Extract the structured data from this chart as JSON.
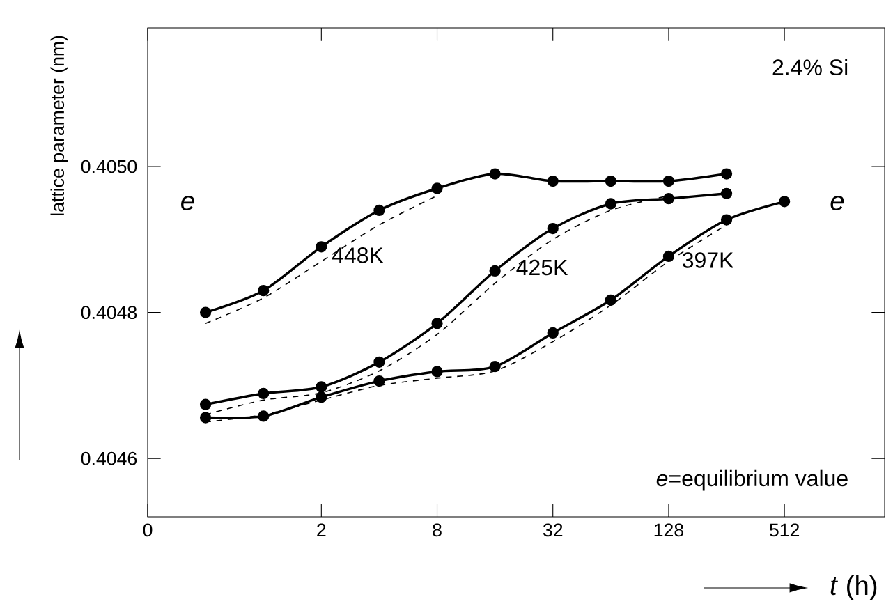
{
  "chart_data": {
    "type": "line",
    "xlabel": "*t* (h)",
    "ylabel": "lattice parameter (nm)",
    "log": "x",
    "grid": false,
    "xlim": [
      0.25,
      1700
    ],
    "ylim": [
      0.40452,
      0.40519
    ],
    "xticks": [
      {
        "value": 0.25,
        "label": "0"
      },
      2,
      8,
      32,
      128,
      512
    ],
    "yticks": [
      {
        "value": 0.4046,
        "label": "0.4046"
      },
      {
        "value": 0.4048,
        "label": "0.4048"
      },
      {
        "value": 0.405,
        "label": "0.4050"
      }
    ],
    "ref_lines": [
      {
        "axis": "y",
        "value": 0.40495,
        "label": "e"
      },
      {
        "axis": "y",
        "value": 0.40495,
        "label": "e"
      }
    ],
    "annotations": [
      "2.4% Si",
      "*e*=equilibrium value",
      "448K",
      "425K",
      "397K"
    ],
    "series": [
      {
        "color": "#000000",
        "marker": "circle",
        "line_style": "solid",
        "x": [
          0.5,
          1,
          2,
          4,
          8,
          16,
          32,
          64,
          128,
          256
        ],
        "values": [
          0.4048,
          0.40483,
          0.40489,
          0.40494,
          0.40497,
          0.40499,
          0.40498,
          0.40498,
          0.40498,
          0.40499
        ]
      },
      {
        "color": "#000000",
        "marker": "circle",
        "line_style": "solid",
        "x": [
          0.5,
          1,
          2,
          4,
          8,
          16,
          32,
          64,
          128,
          256
        ],
        "values": [
          0.404674,
          0.404689,
          0.404698,
          0.404732,
          0.404785,
          0.404857,
          0.404915,
          0.404949,
          0.404956,
          0.404963
        ]
      },
      {
        "color": "#000000",
        "marker": "circle",
        "line_style": "solid",
        "x": [
          0.5,
          1,
          2,
          4,
          8,
          16,
          32,
          64,
          128,
          256,
          512
        ],
        "values": [
          0.404656,
          0.404658,
          0.404684,
          0.404706,
          0.404719,
          0.404726,
          0.404772,
          0.404817,
          0.404877,
          0.404927,
          0.404952
        ]
      },
      {
        "color": "#000000",
        "marker": "none",
        "line_style": "dashed",
        "x": [
          0.5,
          1,
          2,
          4,
          8
        ],
        "values": [
          0.404785,
          0.40482,
          0.40487,
          0.40492,
          0.40496
        ]
      },
      {
        "color": "#000000",
        "marker": "none",
        "line_style": "dashed",
        "x": [
          0.5,
          1,
          2,
          4,
          8,
          16,
          32,
          64,
          128
        ],
        "values": [
          0.40466,
          0.40468,
          0.40469,
          0.40472,
          0.40477,
          0.40484,
          0.4049,
          0.40494,
          0.40496
        ]
      },
      {
        "color": "#000000",
        "marker": "none",
        "line_style": "dashed",
        "x": [
          0.5,
          1,
          2,
          4,
          8,
          16,
          32,
          64,
          128,
          256
        ],
        "values": [
          0.40465,
          0.40466,
          0.40468,
          0.4047,
          0.40471,
          0.40472,
          0.40476,
          0.40481,
          0.40487,
          0.40492
        ]
      }
    ]
  }
}
